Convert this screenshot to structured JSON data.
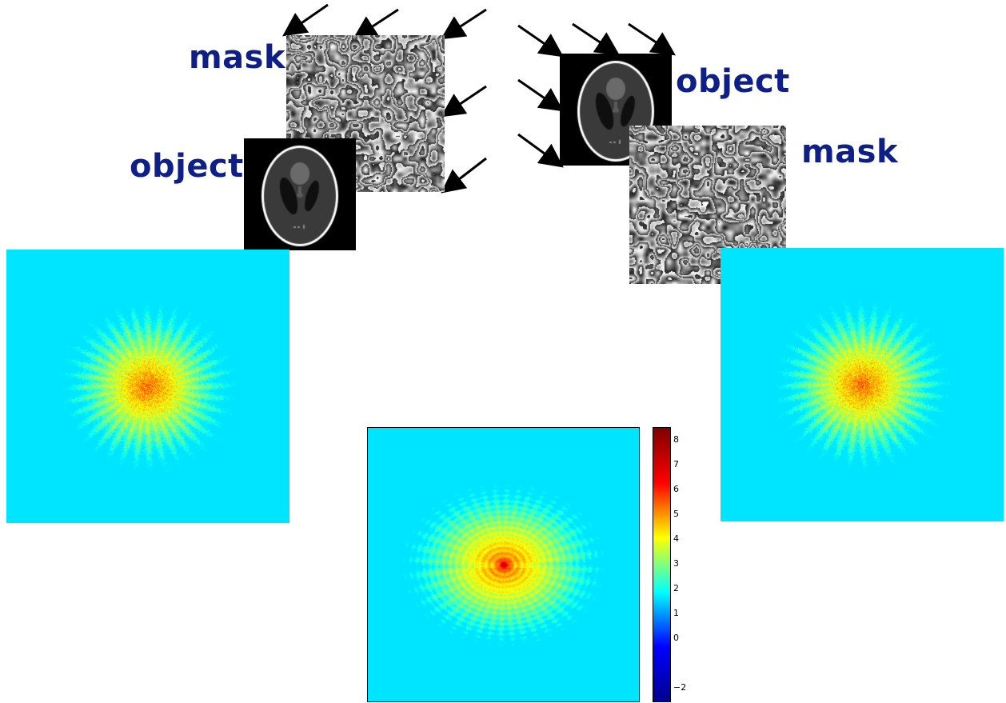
{
  "left_setup": {
    "mask_label": "mask",
    "object_label": "object"
  },
  "right_setup": {
    "mask_label": "mask",
    "object_label": "object"
  },
  "colormap": [
    "#00008f",
    "#0000ff",
    "#00ffff",
    "#ffff00",
    "#ff0000",
    "#800000"
  ],
  "colorbar": {
    "ticks": [
      "8",
      "7",
      "6",
      "5",
      "4",
      "3",
      "2",
      "1",
      "0",
      "−2"
    ],
    "min": -2.5,
    "max": 8.5
  },
  "icons": {
    "illumination_arrows": "arrow-icon"
  }
}
